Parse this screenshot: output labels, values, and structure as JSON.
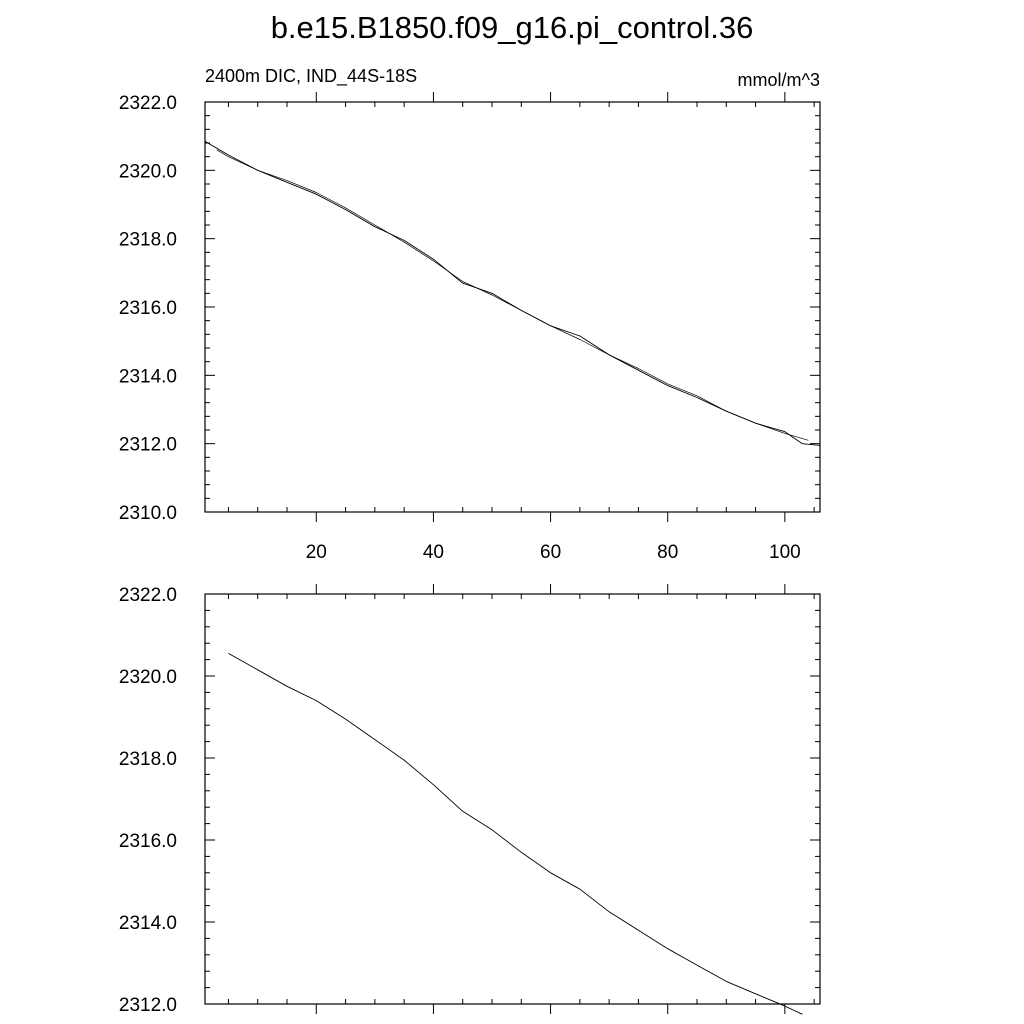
{
  "title": "b.e15.B1850.f09_g16.pi_control.36",
  "chart_data": [
    {
      "type": "line",
      "left_label": "2400m DIC, IND_44S-18S",
      "right_label": "mmol/m^3",
      "xlim": [
        1,
        106
      ],
      "ylim": [
        2310,
        2322
      ],
      "xticks": [
        20,
        40,
        60,
        80,
        100
      ],
      "xtick_labels": [
        "20",
        "40",
        "60",
        "80",
        "100"
      ],
      "yticks": [
        2310,
        2312,
        2314,
        2316,
        2318,
        2320,
        2322
      ],
      "ytick_labels": [
        "2310.0",
        "2312.0",
        "2314.0",
        "2316.0",
        "2318.0",
        "2320.0",
        "2322.0"
      ],
      "series": [
        {
          "x": [
            1,
            5,
            10,
            15,
            20,
            25,
            30,
            35,
            40,
            45,
            50,
            55,
            60,
            65,
            70,
            75,
            80,
            85,
            90,
            95,
            100,
            103,
            106
          ],
          "y": [
            2320.85,
            2320.45,
            2320.0,
            2319.65,
            2319.3,
            2318.85,
            2318.35,
            2317.95,
            2317.4,
            2316.7,
            2316.4,
            2315.9,
            2315.45,
            2315.15,
            2314.6,
            2314.15,
            2313.7,
            2313.35,
            2312.95,
            2312.6,
            2312.35,
            2312.0,
            2311.95
          ]
        },
        {
          "x": [
            3,
            5,
            10,
            15,
            20,
            25,
            30,
            35,
            40,
            45,
            50,
            55,
            60,
            65,
            70,
            75,
            80,
            85,
            90,
            95,
            100,
            104
          ],
          "y": [
            2320.6,
            2320.4,
            2320.0,
            2319.7,
            2319.35,
            2318.9,
            2318.4,
            2317.9,
            2317.35,
            2316.75,
            2316.35,
            2315.9,
            2315.45,
            2315.05,
            2314.6,
            2314.2,
            2313.75,
            2313.4,
            2312.95,
            2312.6,
            2312.3,
            2312.1
          ]
        }
      ]
    },
    {
      "type": "line",
      "xlim": [
        1,
        106
      ],
      "ylim": [
        2312,
        2322
      ],
      "xticks": [
        20,
        40,
        60,
        80,
        100
      ],
      "yticks": [
        2312,
        2314,
        2316,
        2318,
        2320,
        2322
      ],
      "ytick_labels": [
        "2312.0",
        "2314.0",
        "2316.0",
        "2318.0",
        "2320.0",
        "2322.0"
      ],
      "series": [
        {
          "x": [
            5,
            10,
            15,
            20,
            25,
            30,
            35,
            40,
            45,
            50,
            55,
            60,
            65,
            70,
            75,
            80,
            85,
            90,
            95,
            100,
            103
          ],
          "y": [
            2320.55,
            2320.15,
            2319.75,
            2319.4,
            2318.95,
            2318.45,
            2317.95,
            2317.35,
            2316.7,
            2316.25,
            2315.7,
            2315.2,
            2314.8,
            2314.25,
            2313.8,
            2313.35,
            2312.95,
            2312.55,
            2312.25,
            2311.95,
            2311.75
          ]
        }
      ]
    }
  ]
}
